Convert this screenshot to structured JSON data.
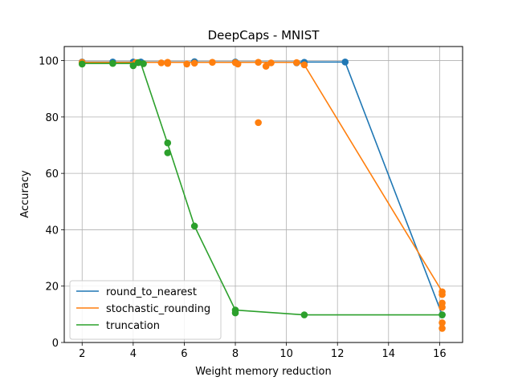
{
  "chart_data": {
    "type": "line",
    "title": "DeepCaps - MNIST",
    "xlabel": "Weight memory reduction",
    "ylabel": "Accuracy",
    "xlim": [
      1.3,
      16.9
    ],
    "ylim": [
      0,
      105
    ],
    "xticks": [
      2,
      4,
      6,
      8,
      10,
      12,
      14,
      16
    ],
    "yticks": [
      0,
      20,
      40,
      60,
      80,
      100
    ],
    "grid": true,
    "legend_position": "lower-left",
    "series": [
      {
        "name": "round_to_nearest",
        "color": "#1f77b4",
        "line": [
          [
            2,
            99.5
          ],
          [
            4,
            99.5
          ],
          [
            6,
            99.5
          ],
          [
            8,
            99.5
          ],
          [
            10.7,
            99.5
          ],
          [
            12.3,
            99.5
          ],
          [
            16.1,
            9.8
          ]
        ],
        "points": [
          [
            2,
            99.5
          ],
          [
            3.2,
            99.5
          ],
          [
            4,
            99.5
          ],
          [
            4.3,
            99.5
          ],
          [
            6.4,
            99.6
          ],
          [
            8,
            99.5
          ],
          [
            10.4,
            99.2
          ],
          [
            10.7,
            99.4
          ],
          [
            12.3,
            99.5
          ],
          [
            16.1,
            9.8
          ]
        ]
      },
      {
        "name": "stochastic_rounding",
        "color": "#ff7f0e",
        "line": [
          [
            2,
            99.4
          ],
          [
            4,
            99.4
          ],
          [
            6,
            99.4
          ],
          [
            8,
            99.4
          ],
          [
            10.4,
            99.4
          ],
          [
            10.7,
            98.5
          ],
          [
            16.1,
            18
          ]
        ],
        "points": [
          [
            2,
            99.4
          ],
          [
            4.1,
            99.3
          ],
          [
            5.1,
            99.2
          ],
          [
            5.35,
            99.4
          ],
          [
            5.35,
            99.0
          ],
          [
            6.1,
            98.8
          ],
          [
            6.4,
            99.1
          ],
          [
            7.1,
            99.4
          ],
          [
            8,
            99.3
          ],
          [
            8.1,
            98.8
          ],
          [
            8.9,
            99.4
          ],
          [
            8.9,
            78
          ],
          [
            9.2,
            98
          ],
          [
            9.4,
            99.2
          ],
          [
            10.4,
            99.3
          ],
          [
            10.7,
            98.5
          ],
          [
            16.1,
            18
          ],
          [
            16.1,
            17
          ],
          [
            16.1,
            14
          ],
          [
            16.1,
            12.5
          ],
          [
            16.1,
            7
          ],
          [
            16.1,
            5
          ]
        ]
      },
      {
        "name": "truncation",
        "color": "#2ca02c",
        "line": [
          [
            2,
            99
          ],
          [
            4,
            99
          ],
          [
            4.3,
            99
          ],
          [
            5.35,
            70.5
          ],
          [
            6.4,
            41.3
          ],
          [
            8,
            11.5
          ],
          [
            10.7,
            9.8
          ],
          [
            16.1,
            9.8
          ]
        ],
        "points": [
          [
            2,
            98.8
          ],
          [
            3.2,
            99
          ],
          [
            4,
            98.2
          ],
          [
            4.2,
            99.3
          ],
          [
            4.4,
            98.9
          ],
          [
            5.35,
            70.8
          ],
          [
            5.35,
            67.3
          ],
          [
            6.4,
            41.3
          ],
          [
            8,
            11.5
          ],
          [
            8,
            10.5
          ],
          [
            10.7,
            9.8
          ],
          [
            16.1,
            9.8
          ]
        ]
      }
    ]
  }
}
